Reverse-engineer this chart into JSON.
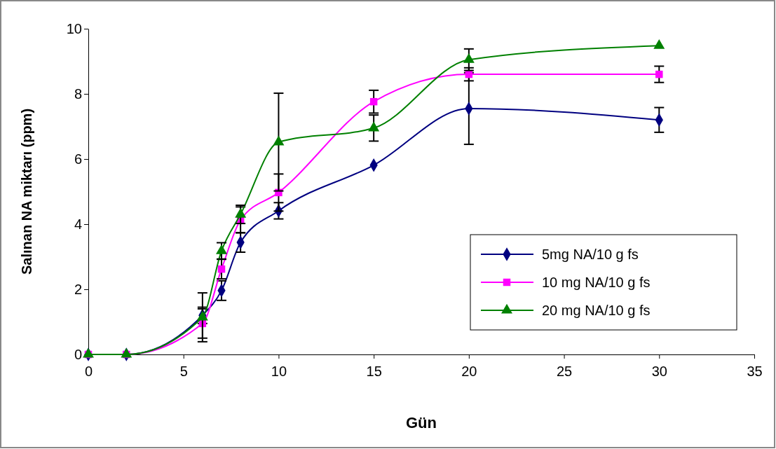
{
  "chart_data": {
    "type": "line",
    "xlabel": "Gün",
    "ylabel": "Salınan NA miktarı (ppm)",
    "xlim": [
      0,
      35
    ],
    "xticks": [
      0,
      5,
      10,
      15,
      20,
      25,
      30,
      35
    ],
    "ylim": [
      0,
      10
    ],
    "yticks": [
      0,
      2,
      4,
      6,
      8,
      10
    ],
    "grid": false,
    "legend": "bottom right",
    "x": [
      0,
      2,
      6,
      7,
      8,
      10,
      15,
      20,
      30
    ],
    "series": [
      {
        "name": "5mg NA/10 g fs",
        "color": "#000080",
        "marker": "diamond",
        "values": [
          0,
          0,
          1.2,
          1.96,
          3.44,
          4.41,
          5.81,
          7.55,
          7.2
        ],
        "errors": [
          null,
          null,
          0.25,
          0.3,
          0.3,
          0.25,
          null,
          1.1,
          0.38
        ]
      },
      {
        "name": "10 mg NA/10 g fs",
        "color": "#ff00ff",
        "marker": "square",
        "values": [
          0,
          0,
          0.95,
          2.62,
          4.13,
          4.97,
          7.76,
          8.6,
          8.6
        ],
        "errors": [
          null,
          null,
          0.45,
          0.3,
          0.4,
          0.57,
          0.35,
          0.2,
          0.25
        ]
      },
      {
        "name": "20 mg NA/10 g fs",
        "color": "#008000",
        "marker": "triangle",
        "values": [
          0,
          0,
          1.14,
          3.18,
          4.3,
          6.52,
          6.95,
          9.05,
          9.48
        ],
        "errors": [
          null,
          null,
          0.75,
          0.25,
          0.28,
          1.5,
          0.4,
          0.33,
          null
        ]
      }
    ]
  }
}
